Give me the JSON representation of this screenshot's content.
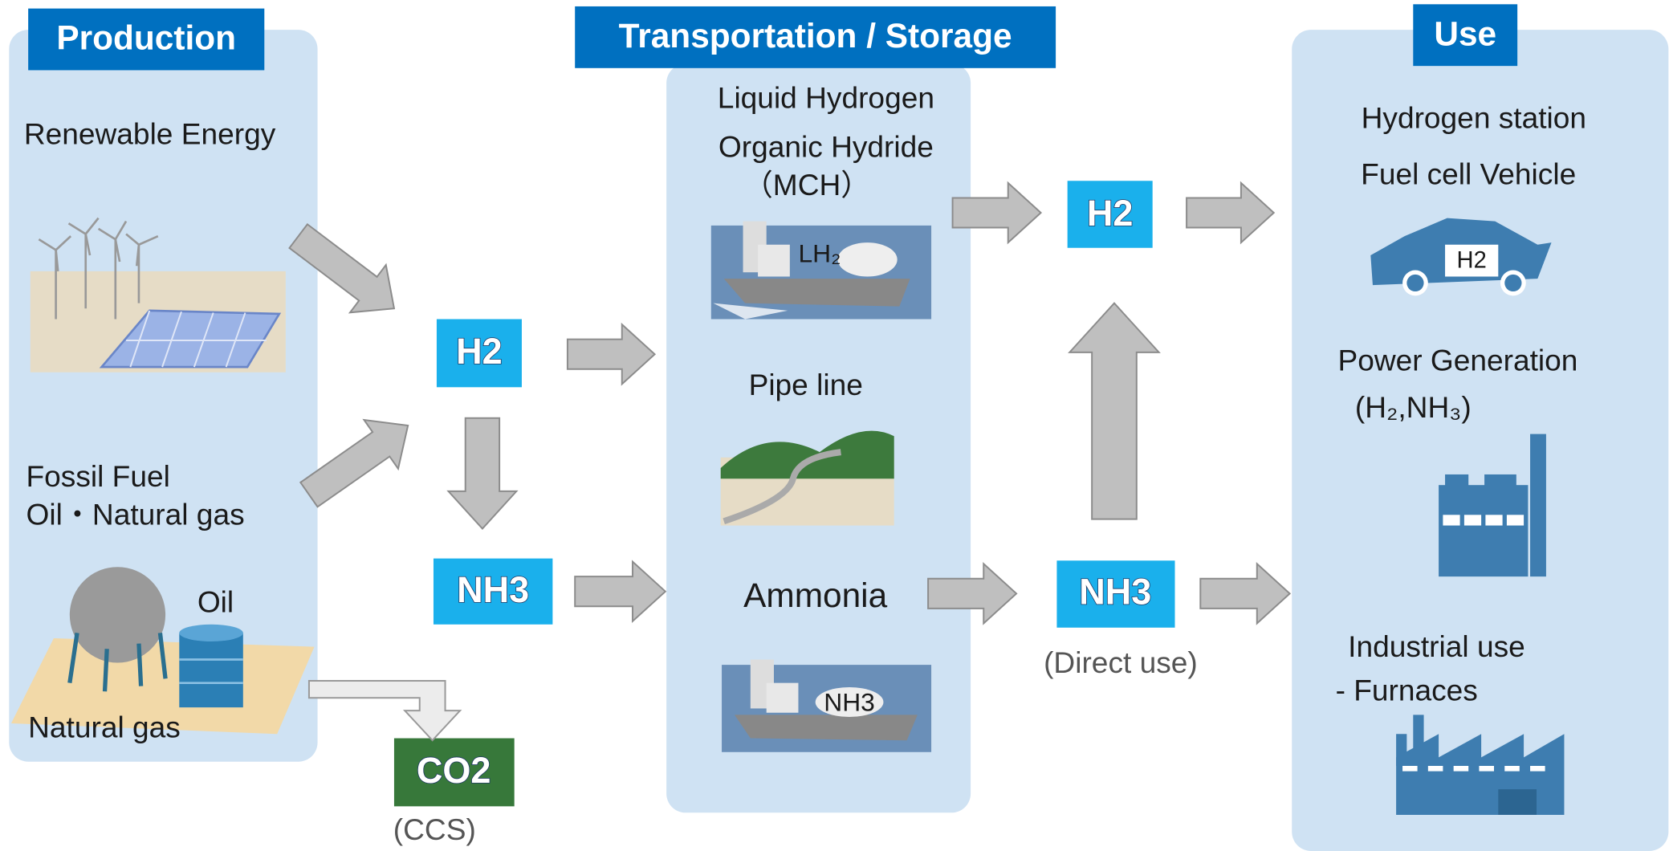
{
  "sections": {
    "production": {
      "title": "Production",
      "renewable": "Renewable Energy",
      "fossil": "Fossil Fuel",
      "fossil_sub": "Oil・Natural gas",
      "oil": "Oil",
      "natural_gas": "Natural gas"
    },
    "transport": {
      "title": "Transportation / Storage",
      "liquid": "Liquid Hydrogen",
      "organic": "Organic Hydride",
      "mch": "（MCH）",
      "ship_lh2": "LH₂",
      "pipeline": "Pipe line",
      "ammonia": "Ammonia",
      "ship_nh3": "NH3"
    },
    "use": {
      "title": "Use",
      "station": "Hydrogen station",
      "fcv": "Fuel cell Vehicle",
      "car_label": "H2",
      "power": "Power Generation",
      "power_sub": "(H₂,NH₃)",
      "industrial": "Industrial use",
      "furnaces": "- Furnaces"
    }
  },
  "nodes": {
    "h2_production": "H2",
    "nh3_production": "NH3",
    "co2": "CO2",
    "ccs": "(CCS)",
    "h2_use": "H2",
    "nh3_use": "NH3",
    "direct_use": "(Direct use)"
  }
}
